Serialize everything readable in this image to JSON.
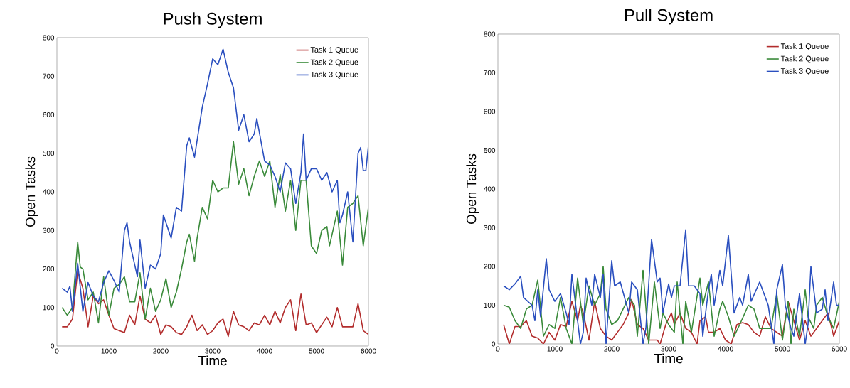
{
  "chart_data": [
    {
      "type": "line",
      "title": "Push System",
      "xlabel": "Time",
      "ylabel": "Open Tasks",
      "xlim": [
        0,
        6000
      ],
      "ylim": [
        0,
        800
      ],
      "xticks": [
        0,
        1000,
        2000,
        3000,
        4000,
        5000,
        6000
      ],
      "yticks": [
        0,
        100,
        200,
        300,
        400,
        500,
        600,
        700,
        800
      ],
      "legend": "top right",
      "grid": false,
      "marker": "none",
      "line_style": "solid",
      "series": [
        {
          "name": "Task 1 Queue",
          "color": "#b22c2c",
          "x": [
            100,
            200,
            300,
            400,
            500,
            600,
            700,
            800,
            900,
            1000,
            1100,
            1200,
            1300,
            1400,
            1500,
            1600,
            1700,
            1800,
            1900,
            2000,
            2100,
            2200,
            2300,
            2400,
            2500,
            2600,
            2700,
            2800,
            2900,
            3000,
            3100,
            3200,
            3300,
            3400,
            3500,
            3600,
            3700,
            3800,
            3900,
            4000,
            4100,
            4200,
            4300,
            4400,
            4500,
            4600,
            4700,
            4800,
            4900,
            5000,
            5100,
            5200,
            5300,
            5400,
            5500,
            5600,
            5700,
            5800,
            5900,
            6000
          ],
          "values": [
            50,
            50,
            70,
            195,
            150,
            50,
            130,
            110,
            120,
            80,
            45,
            40,
            35,
            80,
            55,
            130,
            70,
            60,
            80,
            30,
            55,
            50,
            35,
            30,
            50,
            80,
            40,
            55,
            30,
            40,
            60,
            70,
            25,
            90,
            55,
            50,
            40,
            60,
            55,
            80,
            55,
            90,
            60,
            100,
            120,
            40,
            135,
            55,
            60,
            35,
            55,
            75,
            50,
            100,
            50,
            50,
            50,
            110,
            40,
            30
          ]
        },
        {
          "name": "Task 2 Queue",
          "color": "#3a8a3a",
          "x": [
            100,
            200,
            250,
            300,
            400,
            450,
            500,
            600,
            700,
            800,
            900,
            1000,
            1100,
            1200,
            1300,
            1400,
            1500,
            1600,
            1700,
            1800,
            1900,
            2000,
            2100,
            2200,
            2300,
            2400,
            2500,
            2550,
            2650,
            2700,
            2800,
            2900,
            3000,
            3100,
            3200,
            3300,
            3400,
            3500,
            3600,
            3700,
            3800,
            3900,
            4000,
            4100,
            4200,
            4300,
            4400,
            4500,
            4600,
            4700,
            4800,
            4900,
            5000,
            5100,
            5200,
            5250,
            5400,
            5500,
            5600,
            5700,
            5800,
            5900,
            6000
          ],
          "values": [
            100,
            80,
            90,
            100,
            270,
            205,
            200,
            120,
            140,
            60,
            180,
            80,
            150,
            160,
            180,
            115,
            115,
            190,
            70,
            150,
            90,
            120,
            175,
            100,
            140,
            200,
            270,
            290,
            220,
            280,
            360,
            330,
            430,
            400,
            410,
            410,
            530,
            420,
            460,
            390,
            440,
            480,
            440,
            480,
            360,
            445,
            350,
            430,
            300,
            430,
            430,
            260,
            240,
            300,
            310,
            260,
            350,
            210,
            360,
            370,
            390,
            260,
            360
          ]
        },
        {
          "name": "Task 3 Queue",
          "color": "#2a4fbf",
          "x": [
            100,
            200,
            250,
            300,
            400,
            500,
            600,
            700,
            800,
            900,
            1000,
            1100,
            1200,
            1300,
            1350,
            1400,
            1500,
            1550,
            1600,
            1700,
            1800,
            1900,
            2000,
            2050,
            2200,
            2300,
            2400,
            2500,
            2550,
            2650,
            2800,
            2900,
            3000,
            3100,
            3200,
            3300,
            3400,
            3500,
            3600,
            3700,
            3800,
            3850,
            4000,
            4100,
            4200,
            4300,
            4400,
            4500,
            4600,
            4700,
            4750,
            4800,
            4900,
            5000,
            5100,
            5200,
            5300,
            5400,
            5450,
            5500,
            5600,
            5700,
            5800,
            5850,
            5900,
            5950,
            6000
          ],
          "values": [
            150,
            140,
            155,
            90,
            215,
            90,
            165,
            130,
            115,
            165,
            195,
            170,
            140,
            300,
            320,
            270,
            210,
            180,
            275,
            150,
            210,
            200,
            240,
            340,
            280,
            360,
            350,
            520,
            540,
            490,
            620,
            680,
            745,
            730,
            770,
            710,
            670,
            560,
            600,
            530,
            550,
            590,
            480,
            470,
            440,
            400,
            475,
            460,
            370,
            450,
            550,
            430,
            460,
            460,
            430,
            450,
            400,
            430,
            320,
            340,
            400,
            270,
            500,
            515,
            455,
            455,
            520
          ]
        }
      ]
    },
    {
      "type": "line",
      "title": "Pull System",
      "xlabel": "Time",
      "ylabel": "Open Tasks",
      "xlim": [
        0,
        6000
      ],
      "ylim": [
        0,
        800
      ],
      "xticks": [
        0,
        1000,
        2000,
        3000,
        4000,
        5000,
        6000
      ],
      "yticks": [
        0,
        100,
        200,
        300,
        400,
        500,
        600,
        700,
        800
      ],
      "legend": "top right",
      "grid": false,
      "marker": "none",
      "line_style": "solid",
      "series": [
        {
          "name": "Task 1 Queue",
          "color": "#b22c2c",
          "x": [
            100,
            200,
            300,
            400,
            500,
            600,
            700,
            800,
            900,
            1000,
            1100,
            1200,
            1300,
            1400,
            1450,
            1500,
            1600,
            1700,
            1800,
            1900,
            2000,
            2100,
            2200,
            2300,
            2350,
            2450,
            2550,
            2650,
            2800,
            2850,
            2950,
            3050,
            3100,
            3200,
            3300,
            3400,
            3500,
            3550,
            3650,
            3700,
            3800,
            3900,
            4000,
            4100,
            4200,
            4300,
            4400,
            4500,
            4600,
            4700,
            4800,
            4900,
            5000,
            5100,
            5200,
            5300,
            5400,
            5500,
            5600,
            5700,
            5800,
            5900,
            6000
          ],
          "values": [
            50,
            0,
            45,
            45,
            60,
            20,
            15,
            0,
            30,
            10,
            50,
            45,
            110,
            60,
            100,
            80,
            10,
            110,
            40,
            20,
            10,
            30,
            50,
            80,
            115,
            50,
            40,
            10,
            10,
            0,
            50,
            80,
            50,
            80,
            40,
            30,
            0,
            60,
            70,
            30,
            30,
            40,
            10,
            0,
            50,
            55,
            50,
            30,
            20,
            70,
            40,
            30,
            20,
            110,
            60,
            10,
            60,
            20,
            40,
            60,
            80,
            20,
            60
          ]
        },
        {
          "name": "Task 2 Queue",
          "color": "#3a8a3a",
          "x": [
            100,
            200,
            300,
            400,
            500,
            600,
            700,
            800,
            900,
            1000,
            1100,
            1200,
            1300,
            1400,
            1500,
            1600,
            1700,
            1800,
            1850,
            1900,
            2000,
            2100,
            2200,
            2300,
            2400,
            2450,
            2550,
            2650,
            2750,
            2850,
            2900,
            3000,
            3100,
            3150,
            3250,
            3300,
            3400,
            3550,
            3600,
            3700,
            3800,
            3900,
            3950,
            4050,
            4150,
            4250,
            4400,
            4500,
            4600,
            4800,
            4900,
            5000,
            5100,
            5150,
            5200,
            5300,
            5400,
            5450,
            5550,
            5600,
            5700,
            5800,
            5900,
            6000
          ],
          "values": [
            100,
            95,
            60,
            40,
            90,
            100,
            165,
            20,
            50,
            40,
            120,
            40,
            0,
            170,
            50,
            150,
            100,
            130,
            200,
            90,
            50,
            60,
            90,
            120,
            100,
            20,
            190,
            0,
            160,
            40,
            80,
            50,
            30,
            160,
            0,
            110,
            30,
            170,
            100,
            160,
            20,
            90,
            110,
            70,
            20,
            50,
            100,
            90,
            40,
            40,
            130,
            10,
            110,
            0,
            90,
            20,
            140,
            70,
            40,
            100,
            120,
            70,
            40,
            110
          ]
        },
        {
          "name": "Task 3 Queue",
          "color": "#2a4fbf",
          "x": [
            100,
            200,
            300,
            400,
            450,
            600,
            650,
            700,
            750,
            850,
            900,
            1000,
            1100,
            1200,
            1250,
            1300,
            1400,
            1450,
            1500,
            1550,
            1650,
            1700,
            1800,
            1850,
            1900,
            2000,
            2050,
            2150,
            2300,
            2350,
            2450,
            2550,
            2600,
            2700,
            2800,
            2850,
            2900,
            3000,
            3050,
            3100,
            3200,
            3300,
            3350,
            3450,
            3550,
            3600,
            3700,
            3750,
            3800,
            3900,
            3950,
            4050,
            4150,
            4250,
            4300,
            4400,
            4450,
            4600,
            4650,
            4750,
            4850,
            4900,
            5000,
            5050,
            5150,
            5200,
            5300,
            5400,
            5450,
            5500,
            5600,
            5700,
            5750,
            5800,
            5900,
            5950,
            6000
          ],
          "values": [
            150,
            140,
            155,
            175,
            120,
            100,
            60,
            140,
            70,
            220,
            140,
            110,
            130,
            80,
            50,
            180,
            60,
            0,
            30,
            170,
            100,
            180,
            120,
            180,
            0,
            215,
            150,
            160,
            80,
            160,
            140,
            0,
            40,
            270,
            160,
            170,
            80,
            155,
            120,
            150,
            150,
            295,
            150,
            150,
            130,
            20,
            140,
            180,
            100,
            190,
            150,
            280,
            80,
            120,
            100,
            180,
            110,
            160,
            140,
            100,
            0,
            140,
            205,
            100,
            40,
            20,
            130,
            0,
            50,
            200,
            80,
            90,
            140,
            60,
            160,
            100,
            100
          ]
        }
      ]
    }
  ]
}
